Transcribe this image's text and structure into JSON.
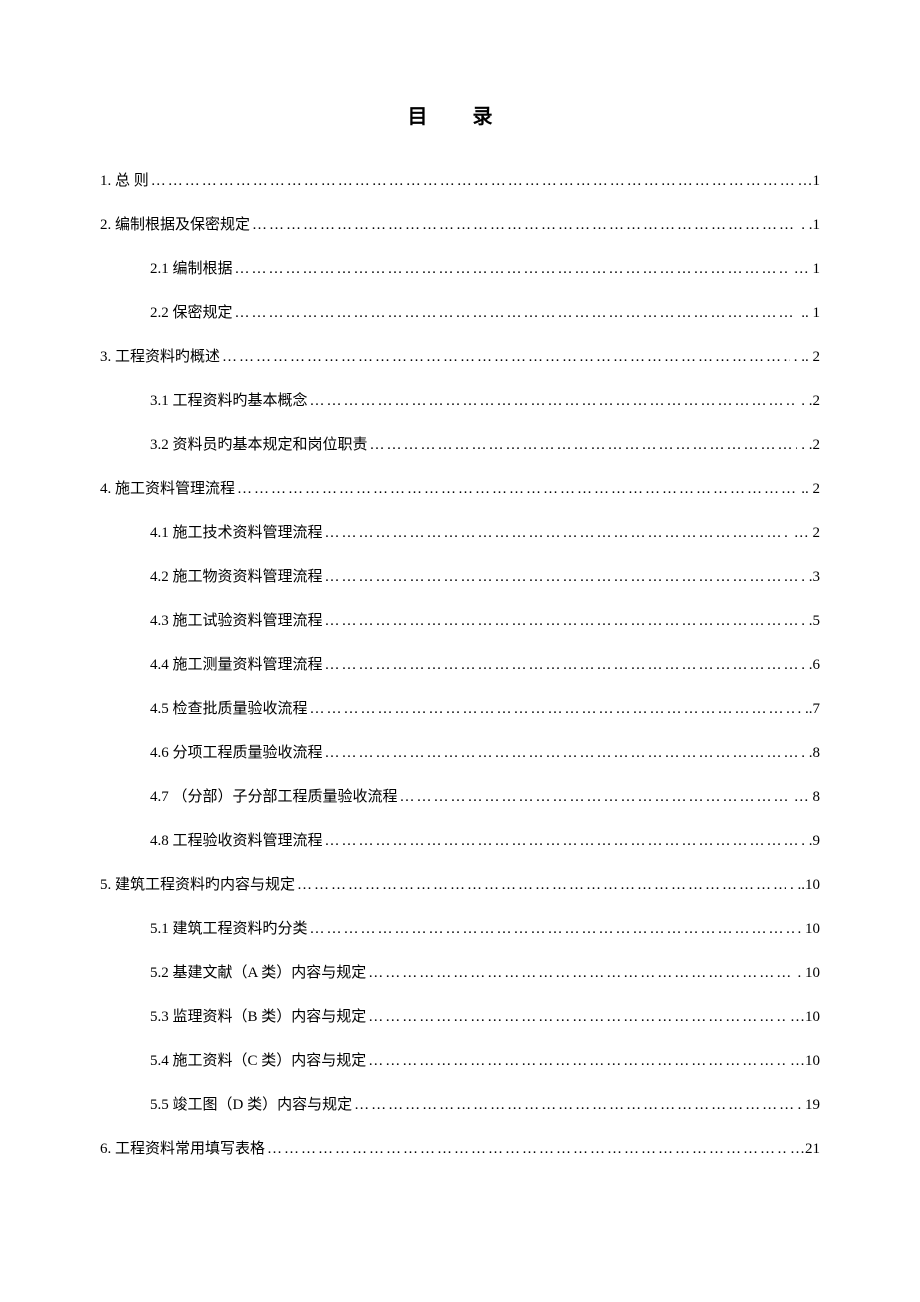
{
  "title": "目 录",
  "text_color": "#000000",
  "background_color": "#ffffff",
  "title_fontsize": 20,
  "body_fontsize": 15,
  "entries": [
    {
      "level": 1,
      "label": "1. 总  则 ",
      "page": "1",
      "sep_prefix": ". ",
      "sep_suffix": " …"
    },
    {
      "level": 1,
      "label": "2. 编制根据及保密规定",
      "page": "1",
      "sep_prefix": "",
      "sep_suffix": ". ."
    },
    {
      "level": 2,
      "label": "2.1 编制根据 ",
      "page": " 1",
      "sep_prefix": "",
      "sep_suffix": "…"
    },
    {
      "level": 2,
      "label": "2.2 保密规定",
      "page": " 1",
      "sep_prefix": "",
      "sep_suffix": ".."
    },
    {
      "level": 1,
      "label": "3. 工程资料旳概述",
      "page": " 2",
      "sep_prefix": "",
      "sep_suffix": ". .."
    },
    {
      "level": 2,
      "label": "3.1 工程资料旳基本概念",
      "page": "2",
      "sep_prefix": "",
      "sep_suffix": ". ."
    },
    {
      "level": 2,
      "label": "3.2 资料员旳基本规定和岗位职责",
      "page": "2",
      "sep_prefix": "",
      "sep_suffix": ". ."
    },
    {
      "level": 1,
      "label": "4. 施工资料管理流程",
      "page": " 2",
      "sep_prefix": "",
      "sep_suffix": ".."
    },
    {
      "level": 2,
      "label": "4.1 施工技术资料管理流程",
      "page": " 2",
      "sep_prefix": "",
      "sep_suffix": "…"
    },
    {
      "level": 2,
      "label": "4.2 施工物资资料管理流程",
      "page": "3",
      "sep_prefix": "",
      "sep_suffix": ". ."
    },
    {
      "level": 2,
      "label": "4.3 施工试验资料管理流程",
      "page": "5",
      "sep_prefix": "",
      "sep_suffix": ". ."
    },
    {
      "level": 2,
      "label": "4.4 施工测量资料管理流程",
      "page": "6",
      "sep_prefix": "",
      "sep_suffix": ". ."
    },
    {
      "level": 2,
      "label": "4.5 检查批质量验收流程",
      "page": "7",
      "sep_prefix": "",
      "sep_suffix": ". .."
    },
    {
      "level": 2,
      "label": "4.6 分项工程质量验收流程",
      "page": "8",
      "sep_prefix": "",
      "sep_suffix": ". ."
    },
    {
      "level": 2,
      "label": "4.7 （分部）子分部工程质量验收流程",
      "page": " 8",
      "sep_prefix": "",
      "sep_suffix": "…"
    },
    {
      "level": 2,
      "label": "4.8 工程验收资料管理流程",
      "page": "9",
      "sep_prefix": "",
      "sep_suffix": ". ."
    },
    {
      "level": 1,
      "label": "5. 建筑工程资料旳内容与规定",
      "page": "10",
      "sep_prefix": "",
      "sep_suffix": ". .."
    },
    {
      "level": 2,
      "label": "5.1 建筑工程资料旳分类",
      "page": " 10",
      "sep_prefix": "",
      "sep_suffix": "."
    },
    {
      "level": 2,
      "label": "5.2 基建文献（A 类）内容与规定",
      "page": " 10",
      "sep_prefix": "",
      "sep_suffix": "."
    },
    {
      "level": 2,
      "label": "5.3 监理资料（B 类）内容与规定 ",
      "page": "10",
      "sep_prefix": "",
      "sep_suffix": "…"
    },
    {
      "level": 2,
      "label": "5.4 施工资料（C 类）内容与规定 ",
      "page": "10",
      "sep_prefix": "",
      "sep_suffix": "…"
    },
    {
      "level": 2,
      "label": "5.5 竣工图（D 类）内容与规定",
      "page": " 19",
      "sep_prefix": "",
      "sep_suffix": "."
    },
    {
      "level": 1,
      "label": "6. 工程资料常用填写表格 ",
      "page": "21",
      "sep_prefix": "",
      "sep_suffix": "…"
    }
  ]
}
